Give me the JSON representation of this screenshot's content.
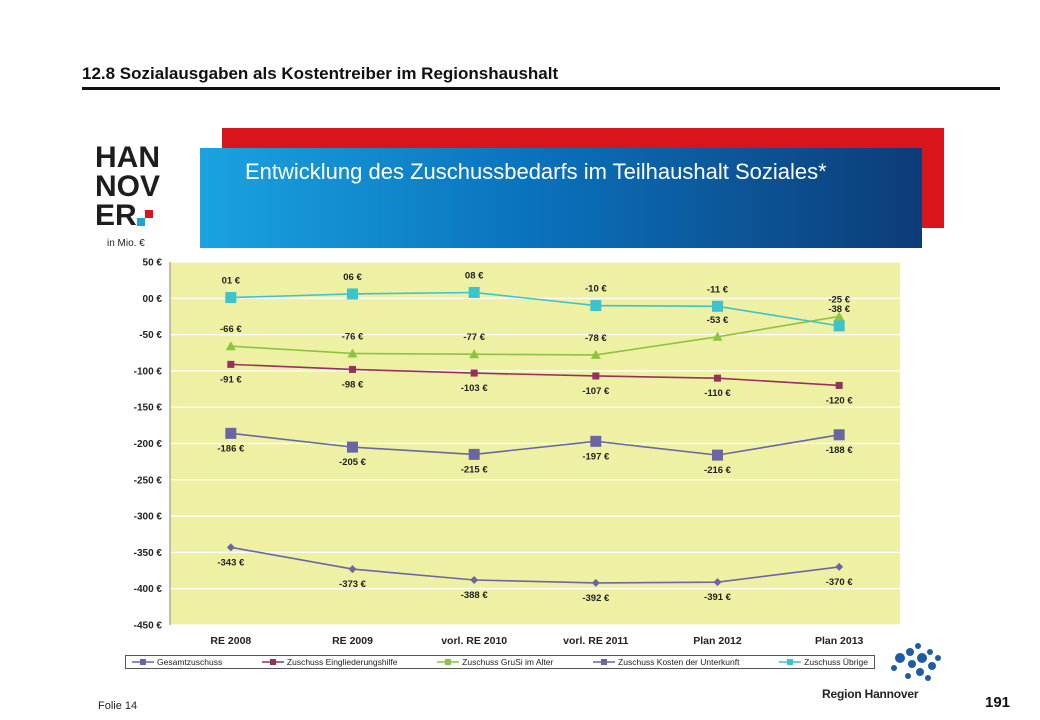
{
  "page": {
    "title": "12.8 Sozialausgaben als Kostentreiber im Regionshaushalt",
    "banner_title": "Entwicklung des Zuschussbedarfs im Teilhaushalt Soziales*",
    "logo_text_lines": [
      "HAN",
      "NOV",
      "ER"
    ],
    "unit_label": "in Mio. €",
    "folie": "Folie 14",
    "page_number": "191",
    "region_name": "Region Hannover"
  },
  "colors": {
    "plot_bg": "#eef0a4",
    "red_band": "#d9141b",
    "blue_band": "#0a73bd",
    "grid": "#ffffff"
  },
  "chart_data": {
    "type": "line",
    "categories": [
      "RE 2008",
      "RE 2009",
      "vorl. RE 2010",
      "vorl. RE  2011",
      "Plan 2012",
      "Plan 2013"
    ],
    "ylim": [
      -450,
      50
    ],
    "yticks": [
      50,
      0,
      -50,
      -100,
      -150,
      -200,
      -250,
      -300,
      -350,
      -400,
      -450
    ],
    "ytick_labels": [
      "50 €",
      "00 €",
      "-50 €",
      "-100 €",
      "-150 €",
      "-200 €",
      "-250 €",
      "-300 €",
      "-350 €",
      "-400 €",
      "-450 €"
    ],
    "grid": true,
    "legend_position": "bottom",
    "series": [
      {
        "name": "Gesamtzuschuss",
        "color": "#6b65a8",
        "marker": "diamond",
        "values": [
          -343,
          -373,
          -388,
          -392,
          -391,
          -370
        ],
        "labels": [
          "-343 €",
          "-373 €",
          "-388 €",
          "-392 €",
          "-391 €",
          "-370 €"
        ],
        "label_pos": "below"
      },
      {
        "name": "Zuschuss Eingliederungshilfe",
        "color": "#97305e",
        "marker": "square",
        "values": [
          -91,
          -98,
          -103,
          -107,
          -110,
          -120
        ],
        "labels": [
          "-91 €",
          "-98 €",
          "-103 €",
          "-107 €",
          "-110 €",
          "-120 €"
        ],
        "label_pos": "below"
      },
      {
        "name": "Zuschuss GruSi im Alter",
        "color": "#8dc43f",
        "marker": "triangle",
        "values": [
          -66,
          -76,
          -77,
          -78,
          -53,
          -25
        ],
        "labels": [
          "-66 €",
          "-76 €",
          "-77 €",
          "-78 €",
          "-53 €",
          "-25 €"
        ],
        "label_pos": "above"
      },
      {
        "name": "Zuschuss Kosten der Unterkunft",
        "color": "#6a66a3",
        "marker": "bigsquare",
        "values": [
          -186,
          -205,
          -215,
          -197,
          -216,
          -188
        ],
        "labels": [
          "-186 €",
          "-205 €",
          "-215 €",
          "-197 €",
          "-216 €",
          "-188 €"
        ],
        "label_pos": "below"
      },
      {
        "name": "Zuschuss Übrige",
        "color": "#3cc3cc",
        "marker": "bigsquare",
        "values": [
          1,
          6,
          8,
          -10,
          -11,
          -38
        ],
        "labels": [
          "01 €",
          "06 €",
          "08 €",
          "-10 €",
          "-11 €",
          "-38 €"
        ],
        "label_pos": "above"
      }
    ]
  }
}
